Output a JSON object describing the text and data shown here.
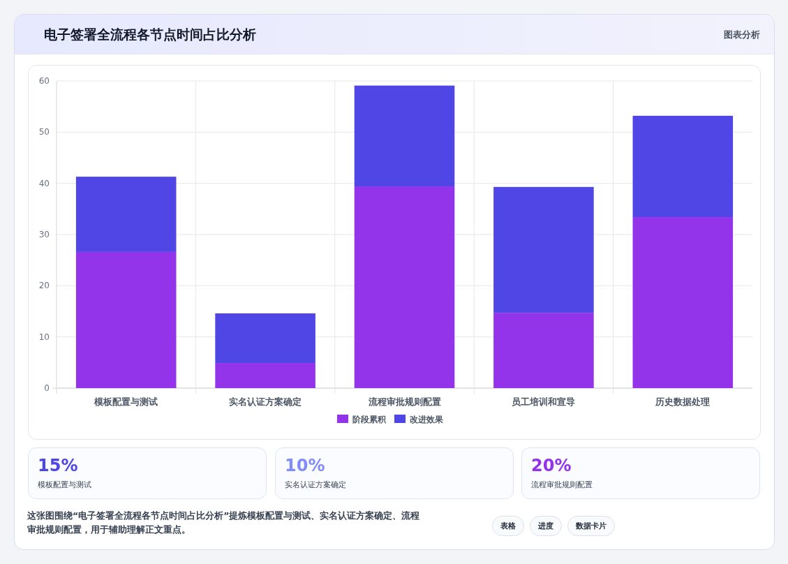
{
  "chart_data": [
    {
      "type": "bar",
      "title": "电子签署全流程各节点时间占比分析",
      "subtitle": "图表分析",
      "categories": [
        "模板配置与测试",
        "实名认证方案确定",
        "流程审批规则配置",
        "员工培训和宣导",
        "历史数据处理"
      ],
      "series": [
        {
          "name": "阶段累积",
          "color": "#9333ea",
          "values": [
            26.6,
            4.9,
            39.4,
            14.7,
            33.4
          ]
        },
        {
          "name": "改进效果",
          "color": "#4f46e5",
          "values": [
            14.7,
            9.7,
            19.7,
            24.6,
            19.8
          ]
        }
      ],
      "stacked": true,
      "ylim": [
        0,
        60
      ],
      "yticks": [
        0,
        10,
        20,
        30,
        40,
        50,
        60
      ],
      "grid": true,
      "legend": "bottom",
      "annotations": [
        "这张图围绕“电子签署全流程各节点时间占比分析”提炼模板配置与测试、实名认证方案确定、流程审批规则配置，用于辅助理解正文重点。",
        "表格",
        "进度",
        "数据卡片"
      ]
    },
    {
      "type": "other",
      "annotations": [
        "15%",
        "模板配置与测试",
        "10%",
        "实名认证方案确定",
        "20%",
        "流程审批规则配置"
      ]
    }
  ]
}
